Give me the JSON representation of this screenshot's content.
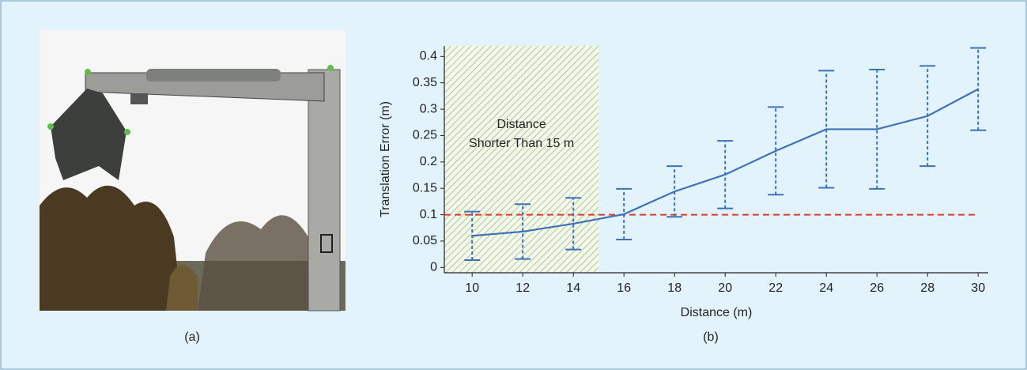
{
  "chart_data": {
    "type": "line",
    "x": [
      10,
      12,
      14,
      16,
      18,
      20,
      22,
      24,
      26,
      28,
      30
    ],
    "values": [
      0.06,
      0.068,
      0.083,
      0.101,
      0.144,
      0.176,
      0.221,
      0.262,
      0.262,
      0.287,
      0.338
    ],
    "errors": [
      0.046,
      0.052,
      0.049,
      0.048,
      0.048,
      0.064,
      0.083,
      0.111,
      0.113,
      0.095,
      0.078
    ],
    "color": "#3d72b8",
    "xlabel": "Distance (m)",
    "ylabel": "Translation Error (m)",
    "xlim": [
      8.9,
      30.4
    ],
    "ylim": [
      -0.01,
      0.42
    ],
    "xticks": [
      10,
      12,
      14,
      16,
      18,
      20,
      22,
      24,
      26,
      28,
      30
    ],
    "yticks": [
      0,
      0.05,
      0.1,
      0.15,
      0.2,
      0.25,
      0.3,
      0.35,
      0.4
    ],
    "threshold": 0.1,
    "threshold_color": "#e23b2a",
    "shade_to": 15,
    "annotation": [
      "Distance",
      "Shorter Than 15 m"
    ]
  },
  "captions": [
    "(a)",
    "(b)"
  ]
}
